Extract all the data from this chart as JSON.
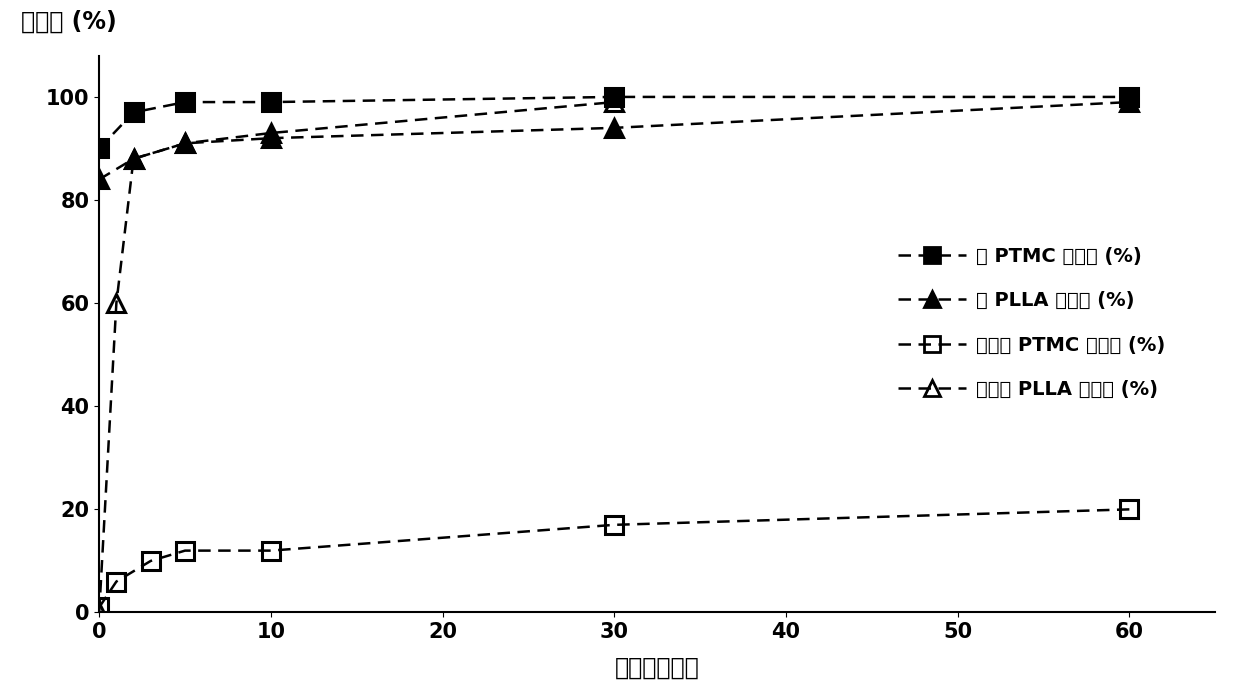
{
  "series": [
    {
      "label": "均 PTMC 转化率 (%)",
      "x": [
        0,
        2,
        5,
        10,
        30,
        60
      ],
      "y": [
        90,
        97,
        99,
        99,
        100,
        100
      ],
      "marker": "s",
      "fillstyle": "full",
      "color": "black",
      "markersize": 13
    },
    {
      "label": "均 PLLA 转化率 (%)",
      "x": [
        0,
        2,
        5,
        10,
        30,
        60
      ],
      "y": [
        84,
        88,
        91,
        92,
        94,
        99
      ],
      "marker": "^",
      "fillstyle": "full",
      "color": "black",
      "markersize": 13
    },
    {
      "label": "共聚中 PTMC 转化率 (%)",
      "x": [
        0,
        1,
        3,
        5,
        10,
        30,
        60
      ],
      "y": [
        1,
        6,
        10,
        12,
        12,
        17,
        20
      ],
      "marker": "s",
      "fillstyle": "none",
      "color": "black",
      "markersize": 13
    },
    {
      "label": "共聚中 PLLA 转化率 (%)",
      "x": [
        0,
        1,
        2,
        5,
        10,
        30
      ],
      "y": [
        0,
        60,
        88,
        91,
        93,
        99
      ],
      "marker": "^",
      "fillstyle": "none",
      "color": "black",
      "markersize": 13
    }
  ],
  "ylabel_top": "转化率 (%)",
  "xlabel": "时间（分钟）",
  "xlim": [
    0,
    65
  ],
  "ylim": [
    0,
    108
  ],
  "xticks": [
    0,
    10,
    20,
    30,
    40,
    50,
    60
  ],
  "yticks": [
    0,
    20,
    40,
    60,
    80,
    100
  ],
  "legend_fontsize": 14,
  "axis_label_fontsize": 17,
  "tick_fontsize": 15,
  "xlabel_fontsize": 17
}
